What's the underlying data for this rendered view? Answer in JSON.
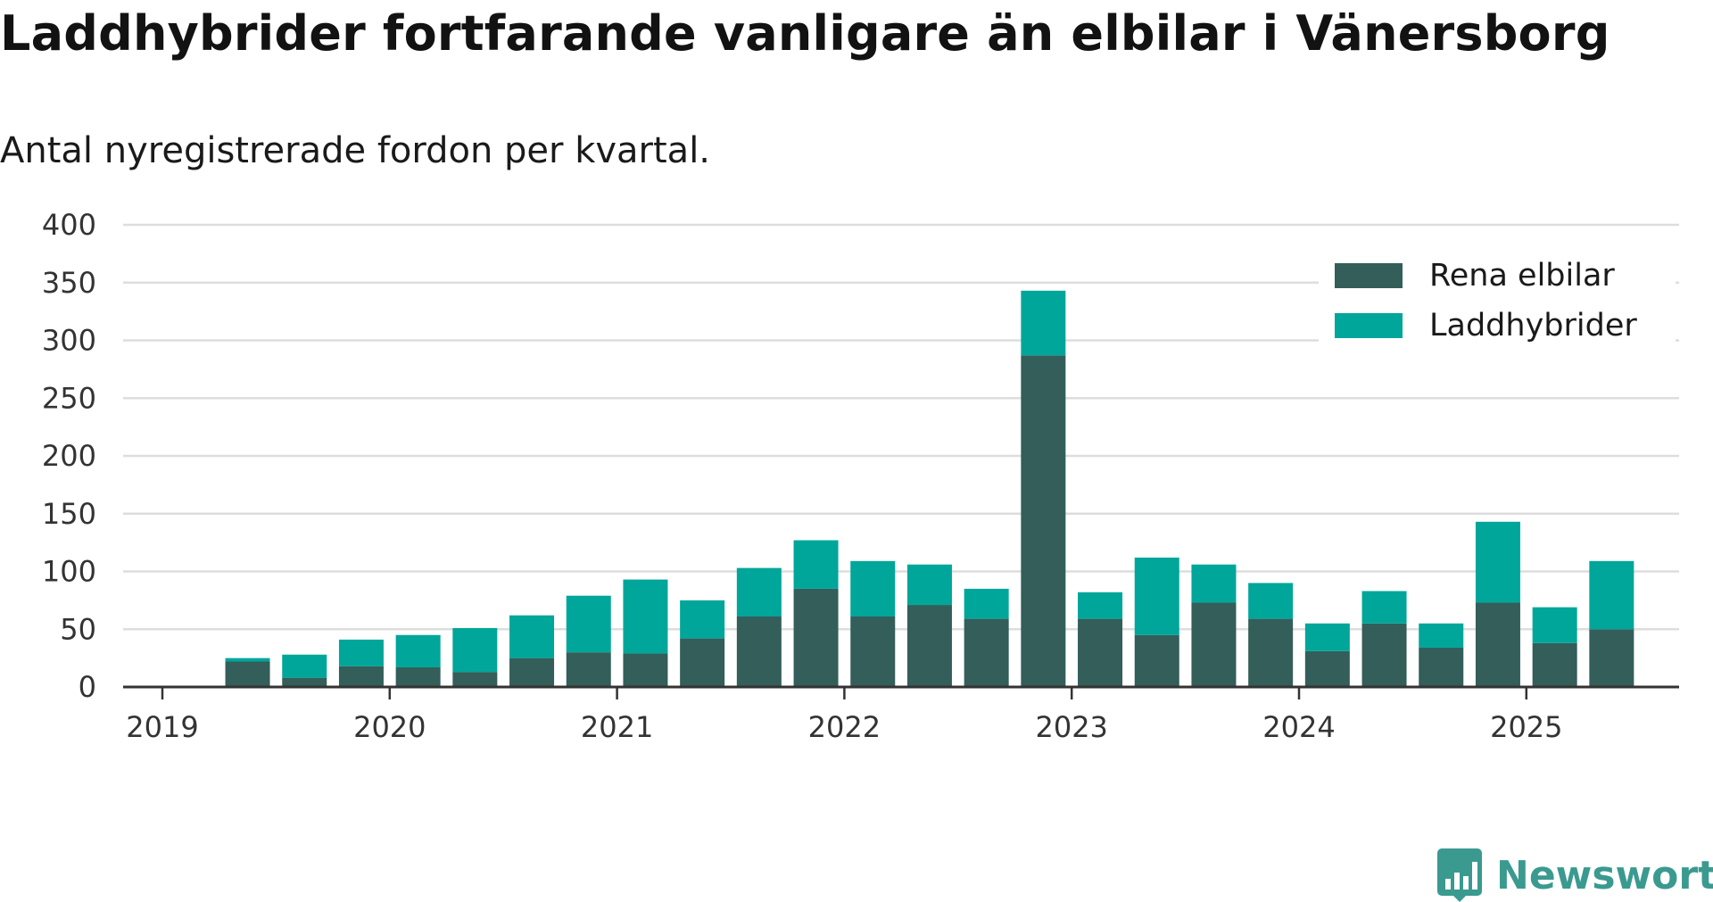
{
  "chart_data": {
    "type": "bar",
    "stacked": true,
    "title": "Laddhybrider fortfarande vanligare än elbilar i Vänersborg",
    "subtitle": "Antal nyregistrerade fordon per kvartal.",
    "x": [
      "2019-Q2",
      "2019-Q3",
      "2019-Q4",
      "2020-Q1",
      "2020-Q2",
      "2020-Q3",
      "2020-Q4",
      "2021-Q1",
      "2021-Q2",
      "2021-Q3",
      "2021-Q4",
      "2022-Q1",
      "2022-Q2",
      "2022-Q3",
      "2022-Q4",
      "2023-Q1",
      "2023-Q2",
      "2023-Q3",
      "2023-Q4",
      "2024-Q1",
      "2024-Q2",
      "2024-Q3",
      "2024-Q4",
      "2025-Q1",
      "2025-Q2"
    ],
    "x_tick_labels": [
      "2019",
      "2020",
      "2021",
      "2022",
      "2023",
      "2024",
      "2025"
    ],
    "series": [
      {
        "name": "Rena elbilar",
        "color": "#335e59",
        "values": [
          22,
          8,
          18,
          17,
          13,
          25,
          30,
          29,
          42,
          61,
          85,
          61,
          71,
          59,
          287,
          59,
          45,
          73,
          59,
          31,
          55,
          34,
          73,
          38,
          50
        ]
      },
      {
        "name": "Laddhybrider",
        "color": "#00a69a",
        "values": [
          3,
          20,
          23,
          28,
          38,
          37,
          49,
          64,
          33,
          42,
          42,
          48,
          35,
          26,
          56,
          23,
          67,
          33,
          31,
          24,
          28,
          21,
          70,
          31,
          59
        ]
      }
    ],
    "y_ticks": [
      0,
      50,
      100,
      150,
      200,
      250,
      300,
      350,
      400
    ],
    "ylim": [
      0,
      400
    ],
    "grid": true,
    "legend_position": "top-right",
    "axis_color": "#333333",
    "grid_color": "#dddddd"
  },
  "brand": {
    "name": "Newsworthy",
    "color": "#3a9a90",
    "icon": "bar-chart-badge-icon"
  }
}
